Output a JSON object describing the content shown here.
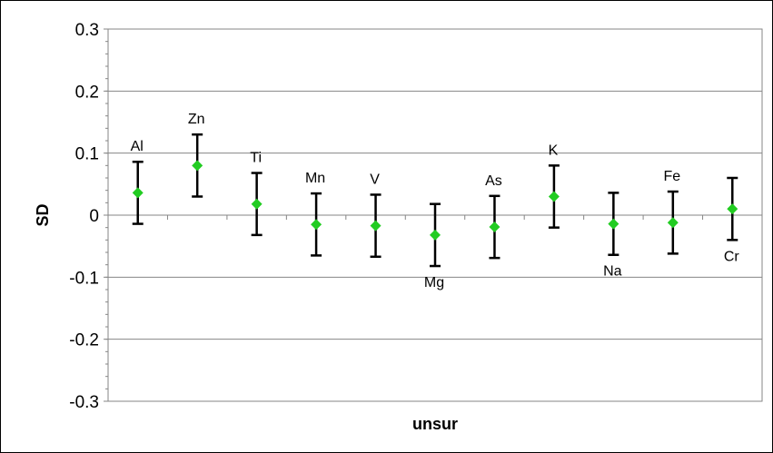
{
  "chart_data": {
    "type": "scatter",
    "title": "",
    "xlabel": "unsur",
    "ylabel": "SD",
    "ylim": [
      -0.3,
      0.3
    ],
    "yticks": [
      0.3,
      0.2,
      0.1,
      0,
      -0.1,
      -0.2,
      -0.3
    ],
    "ytick_labels": [
      "0.3",
      "0.2",
      "0.1",
      "0",
      "-0.1",
      "-0.2",
      "-0.3"
    ],
    "grid": true,
    "legend": "none",
    "marker_color": "#22cc22",
    "error_bar_color": "#000000",
    "error": 0.05,
    "points": [
      {
        "x": 1,
        "label": "Al",
        "label_position": "above",
        "y": 0.036
      },
      {
        "x": 2,
        "label": "Zn",
        "label_position": "above",
        "y": 0.08
      },
      {
        "x": 3,
        "label": "Ti",
        "label_position": "above",
        "y": 0.018
      },
      {
        "x": 4,
        "label": "Mn",
        "label_position": "above",
        "y": -0.015
      },
      {
        "x": 5,
        "label": "V",
        "label_position": "above",
        "y": -0.017
      },
      {
        "x": 6,
        "label": "Mg",
        "label_position": "below",
        "y": -0.032
      },
      {
        "x": 7,
        "label": "As",
        "label_position": "above",
        "y": -0.019
      },
      {
        "x": 8,
        "label": "K",
        "label_position": "above",
        "y": 0.03
      },
      {
        "x": 9,
        "label": "Na",
        "label_position": "below",
        "y": -0.014
      },
      {
        "x": 10,
        "label": "Fe",
        "label_position": "above",
        "y": -0.012
      },
      {
        "x": 11,
        "label": "Cr",
        "label_position": "below",
        "y": 0.01
      }
    ]
  }
}
